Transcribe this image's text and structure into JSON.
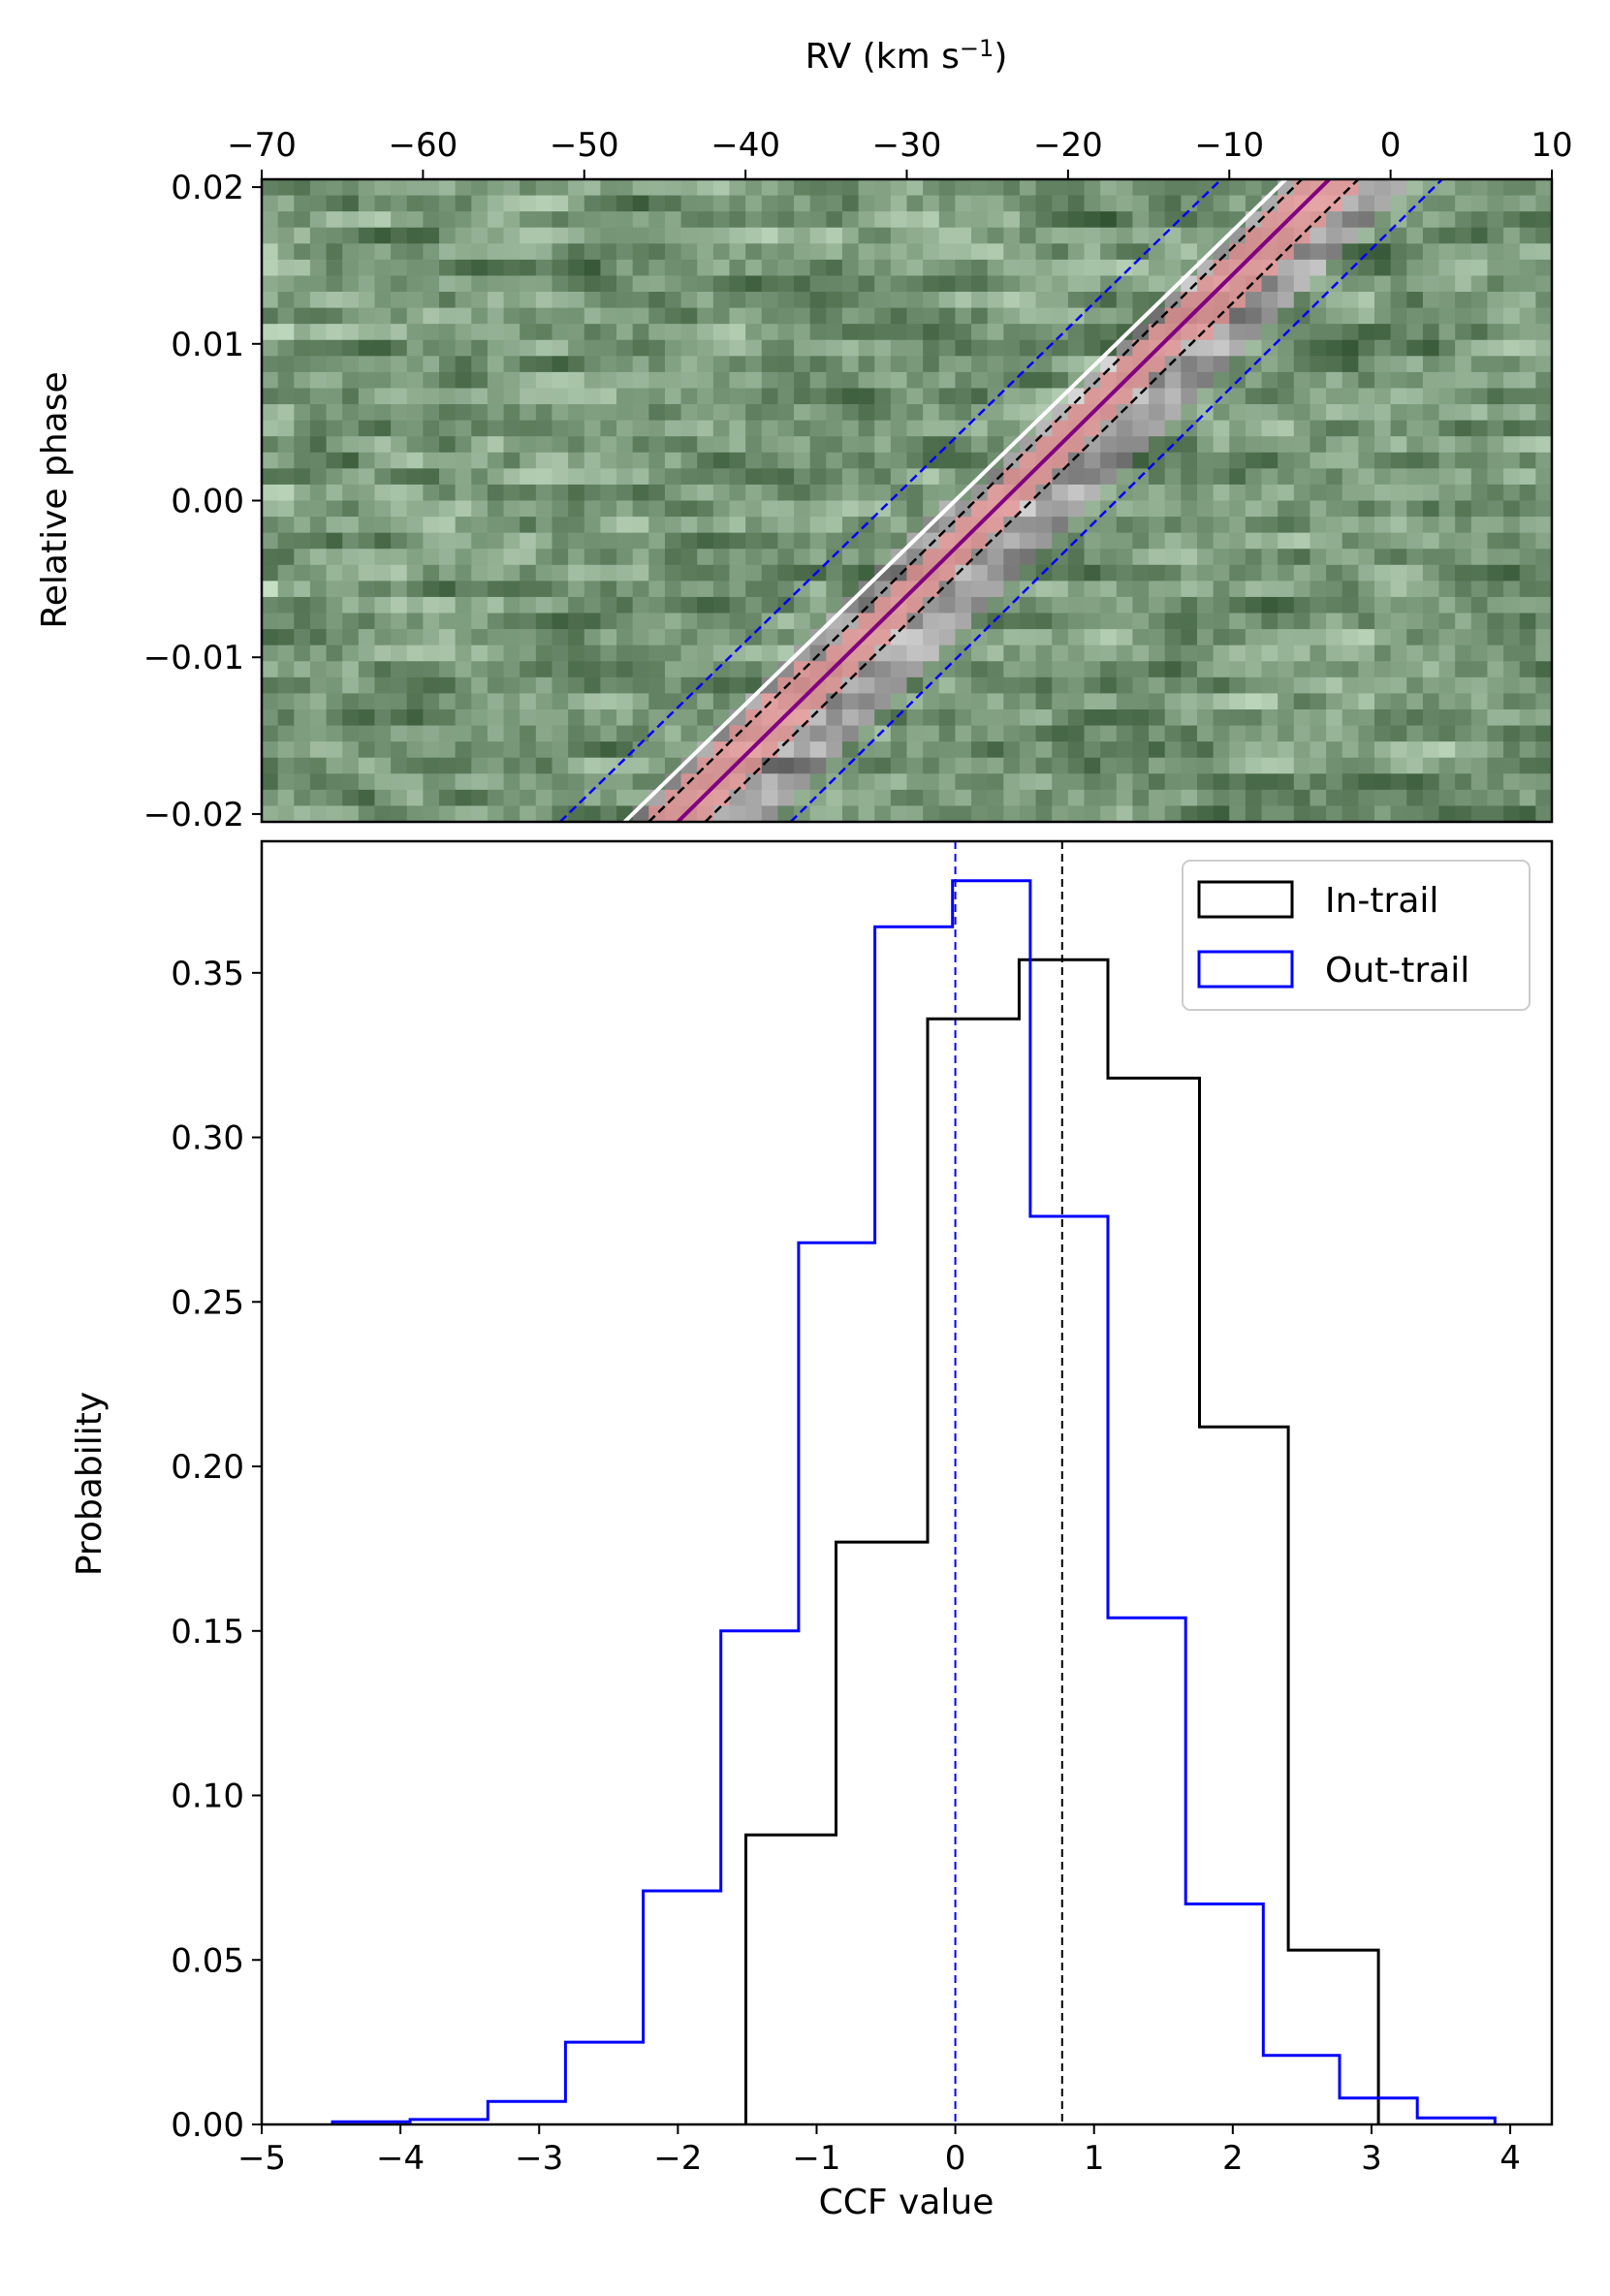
{
  "chart_data": [
    {
      "type": "heatmap",
      "xlabel": "RV (km s",
      "xlabel_sup": "−1",
      "xlabel_close": ")",
      "ylabel": "Relative phase",
      "xlim": [
        -70,
        10
      ],
      "ylim": [
        -0.0205,
        0.0205
      ],
      "xaxis_position": "top",
      "xticks": [
        -70,
        -60,
        -50,
        -40,
        -30,
        -20,
        -10,
        0,
        10
      ],
      "xtick_labels": [
        "−70",
        "−60",
        "−50",
        "−40",
        "−30",
        "−20",
        "−10",
        "0",
        "10"
      ],
      "yticks": [
        -0.02,
        -0.01,
        0.0,
        0.01,
        0.02
      ],
      "ytick_labels": [
        "−0.02",
        "−0.01",
        "0.00",
        "0.01",
        "0.02"
      ],
      "lines": [
        {
          "name": "blue-dashed-left",
          "points": [
            [
              -51.5,
              -0.0205
            ],
            [
              -10.5,
              0.0205
            ]
          ],
          "color": "#0000ff",
          "style": "dashed"
        },
        {
          "name": "white-solid",
          "points": [
            [
              -47.5,
              -0.0205
            ],
            [
              -6.5,
              0.0205
            ]
          ],
          "color": "#ffffff",
          "style": "solid"
        },
        {
          "name": "black-dashed-left",
          "points": [
            [
              -46.0,
              -0.0205
            ],
            [
              -5.5,
              0.0205
            ]
          ],
          "color": "#000000",
          "style": "dashed"
        },
        {
          "name": "purple-solid",
          "points": [
            [
              -44.2,
              -0.0205
            ],
            [
              -3.8,
              0.0205
            ]
          ],
          "color": "#800080",
          "style": "solid"
        },
        {
          "name": "black-dashed-right",
          "points": [
            [
              -42.5,
              -0.0205
            ],
            [
              -2.0,
              0.0205
            ]
          ],
          "color": "#000000",
          "style": "dashed"
        },
        {
          "name": "blue-dashed-right",
          "points": [
            [
              -37.2,
              -0.0205
            ],
            [
              3.2,
              0.0205
            ]
          ],
          "color": "#0000ff",
          "style": "dashed"
        }
      ],
      "colors": {
        "background": "#7fa07f",
        "trail": "#8a8a8a",
        "signal": "#d49a9a"
      }
    },
    {
      "type": "histogram",
      "xlabel": "CCF value",
      "ylabel": "Probability",
      "xlim": [
        -5,
        4.3
      ],
      "ylim": [
        0,
        0.39
      ],
      "xticks": [
        -5,
        -4,
        -3,
        -2,
        -1,
        0,
        1,
        2,
        3,
        4
      ],
      "xtick_labels": [
        "−5",
        "−4",
        "−3",
        "−2",
        "−1",
        "0",
        "1",
        "2",
        "3",
        "4"
      ],
      "yticks": [
        0.0,
        0.05,
        0.1,
        0.15,
        0.2,
        0.25,
        0.3,
        0.35
      ],
      "ytick_labels": [
        "0.00",
        "0.05",
        "0.10",
        "0.15",
        "0.20",
        "0.25",
        "0.30",
        "0.35"
      ],
      "legend_position": "top-right",
      "series": [
        {
          "name": "In-trail",
          "color": "#000000",
          "bin_edges": [
            -1.51,
            -0.86,
            -0.2,
            0.46,
            1.1,
            1.76,
            2.4,
            3.05
          ],
          "values": [
            0.088,
            0.177,
            0.336,
            0.354,
            0.318,
            0.212,
            0.053
          ]
        },
        {
          "name": "Out-trail",
          "color": "#0000ff",
          "bin_edges": [
            -4.49,
            -3.93,
            -3.37,
            -2.81,
            -2.25,
            -1.69,
            -1.13,
            -0.58,
            -0.02,
            0.54,
            1.1,
            1.66,
            2.22,
            2.77,
            3.33,
            3.89
          ],
          "values": [
            0.0008,
            0.0015,
            0.007,
            0.025,
            0.071,
            0.15,
            0.268,
            0.364,
            0.378,
            0.276,
            0.154,
            0.067,
            0.021,
            0.008,
            0.002
          ]
        }
      ],
      "vlines": [
        {
          "name": "out-trail-mean-line",
          "x": 0.0,
          "color": "#0000ff",
          "style": "dashed"
        },
        {
          "name": "in-trail-mean-line",
          "x": 0.77,
          "color": "#000000",
          "style": "dashed"
        }
      ]
    }
  ]
}
